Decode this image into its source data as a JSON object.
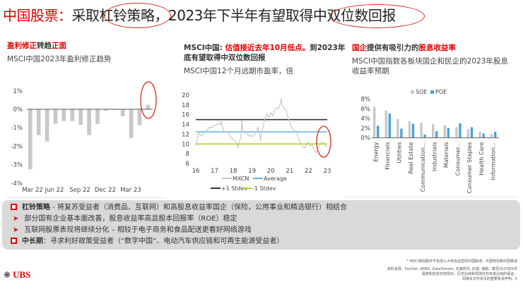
{
  "title": {
    "prefix": "中国股票：",
    "part1": "采取",
    "circled1": "杠铃策略",
    "part2": "，2023年下半年有望取得",
    "circled2": "中双位数回报"
  },
  "panels": {
    "earnings": {
      "heading_red1": "盈利修正",
      "heading_dark": "转趋",
      "heading_red2": "正面",
      "subtitle": "MSCI中国2023年盈利修正趋势"
    },
    "pe": {
      "heading_dark1": "MSCI中国: ",
      "heading_red": "估值接近去年10月低点。",
      "heading_dark2": "到2023年",
      "heading_line2": "底有望取得中双位数回报",
      "subtitle": "MSCI中国12个月远期市盈率，倍"
    },
    "dividend": {
      "heading_red1": "国企",
      "heading_dark": "提供有吸引力的",
      "heading_red2": "股息收益率",
      "subtitle_line1": "MSCI中国指数各板块国企和民企的2023年股息",
      "subtitle_line2": "收益率预期"
    }
  },
  "chart_data": [
    {
      "type": "bar",
      "title": "MSCI中国2023年盈利修正趋势",
      "xlabel": "",
      "ylabel": "",
      "ylim": [
        -4,
        1
      ],
      "yticks": [
        "1%",
        "0%",
        "-1%",
        "-2%",
        "-3%",
        "-4%"
      ],
      "xtick_labels": [
        "Mar 22",
        "Jun 22",
        "Sep 22",
        "Dec 22",
        "Mar 23"
      ],
      "categories": [
        "Mar 22",
        "Apr 22",
        "May 22",
        "Jun 22",
        "Jul 22",
        "Aug 22",
        "Sep 22",
        "Oct 22",
        "Nov 22",
        "Dec 22",
        "Jan 23",
        "Feb 23",
        "Mar 23",
        "Apr 23",
        "May 23"
      ],
      "values": [
        -3.25,
        -1.4,
        -1.75,
        -0.78,
        -0.64,
        -0.64,
        -0.84,
        -1.4,
        -0.8,
        -0.08,
        -0.04,
        -0.38,
        -1.55,
        -0.86,
        0.24
      ],
      "bar_color": "#c8c8c8",
      "annotation": "red circle around latest positive bar"
    },
    {
      "type": "line",
      "title": "MSCI中国12个月远期市盈率，倍",
      "ylim": [
        6,
        20
      ],
      "yticks": [
        20,
        18,
        16,
        14,
        12,
        10,
        8,
        6
      ],
      "x": [
        "16",
        "17",
        "18",
        "19",
        "20",
        "21",
        "22",
        "23"
      ],
      "series": [
        {
          "name": "MXCN",
          "color": "#c8c8c8",
          "values_by_year_approx": [
            10.5,
            12.5,
            13.5,
            11.5,
            13.0,
            17.5,
            10.0,
            9.8
          ],
          "peak": 19.3,
          "low": 8.2
        },
        {
          "name": "Average",
          "color": "#5bb4e0",
          "value": 12.5
        },
        {
          "name": "+1 Stdev",
          "color": "#333333",
          "value": 15.0
        },
        {
          "name": "-1 Stdev",
          "color": "#b5d334",
          "value": 10.0
        }
      ],
      "legend": [
        "MXCN",
        "Average",
        "+1 Stdev",
        "-1 Stdev"
      ],
      "annotation": "red circle around 2023 end"
    },
    {
      "type": "bar",
      "title": "MSCI中国指数各板块国企和民企的2023年股息收益率预期",
      "ylim": [
        0,
        8
      ],
      "yticks": [
        "8%",
        "6%",
        "4%",
        "2%",
        "0%"
      ],
      "categories": [
        "Energy",
        "Financials",
        "Utilities",
        "Real Estate",
        "Communication...",
        "Industrials",
        "Materials",
        "Consumer...",
        "Consumer Staples",
        "Health Care",
        "Information..."
      ],
      "series": [
        {
          "name": "SOE",
          "color": "#c8c8c8",
          "values": [
            6.4,
            5.6,
            3.9,
            3.4,
            3.1,
            2.8,
            2.6,
            2.2,
            1.8,
            1.25,
            0.8
          ]
        },
        {
          "name": "POE",
          "color": "#4ba3d8",
          "values": [
            2.5,
            5.0,
            1.9,
            2.9,
            0.7,
            1.35,
            2.0,
            3.0,
            2.2,
            0.9,
            1.25
          ]
        }
      ],
      "legend_position": "top"
    }
  ],
  "notes": [
    {
      "bullet": "square",
      "bold": "杠铃策略",
      "text": " - 将复苏受益者（消费品、互联网）和高股息收益率国企（保险，公用事业和精选银行）相结合"
    },
    {
      "bullet": "arrow",
      "bold": "",
      "text": "部分国有企业基本面改善，股息收益率高且股本回报率（ROE）稳定"
    },
    {
      "bullet": "arrow",
      "bold": "",
      "text": "互联网股票表现将继续分化 – 相较于电子商务和食品配送更看好网络游戏"
    },
    {
      "bullet": "square",
      "bold": "中长期",
      "text": "：寻求利好政策受益者（“数字中国”、电动汽车供应链和可再生能源受益者）"
    }
  ],
  "footnotes": {
    "line1": "* MSCI通信服务不包括三大电信运营商中国联通、中国电信和中国移动",
    "line2": "资料来源：FactSet, WIND, DataStream, 花旗研究, 彭博, 瑞银。截至2023年6月",
    "line3": "图表和信息仅供例示。历史业绩和预测并非未来业绩的保证。",
    "line4": "阅读本文件末页的重要免责声明。5"
  },
  "logo": {
    "mark": "❋",
    "text": "UBS"
  },
  "colors": {
    "accent_red": "#e60000",
    "soe_gray": "#c8c8c8",
    "poe_blue": "#4ba3d8",
    "average_blue": "#5bb4e0",
    "stdev_green": "#b5d334",
    "stdev_dark": "#333333"
  }
}
